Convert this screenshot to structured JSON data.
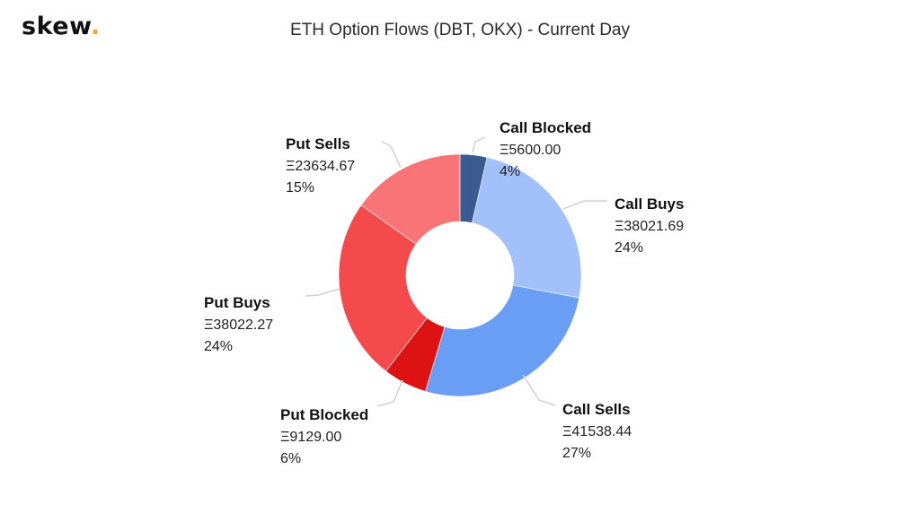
{
  "logo": {
    "text": "skew",
    "dot": "."
  },
  "title": "ETH Option Flows (DBT, OKX) - Current Day",
  "chart_data": {
    "type": "pie",
    "title": "ETH Option Flows (DBT, OKX) - Current Day",
    "donut": true,
    "slices": [
      {
        "name": "Call Blocked",
        "value": 5600.0,
        "value_label": "Ξ5600.00",
        "percent_label": "4%",
        "color": "#3a5a91"
      },
      {
        "name": "Call Buys",
        "value": 38021.69,
        "value_label": "Ξ38021.69",
        "percent_label": "24%",
        "color": "#a2c1fb"
      },
      {
        "name": "Call Sells",
        "value": 41538.44,
        "value_label": "Ξ41538.44",
        "percent_label": "27%",
        "color": "#6a9ef5"
      },
      {
        "name": "Put Blocked",
        "value": 9129.0,
        "value_label": "Ξ9129.00",
        "percent_label": "6%",
        "color": "#dd1313"
      },
      {
        "name": "Put Buys",
        "value": 38022.27,
        "value_label": "Ξ38022.27",
        "percent_label": "24%",
        "color": "#f54a4c"
      },
      {
        "name": "Put Sells",
        "value": 23634.67,
        "value_label": "Ξ23634.67",
        "percent_label": "15%",
        "color": "#f87476"
      }
    ]
  }
}
